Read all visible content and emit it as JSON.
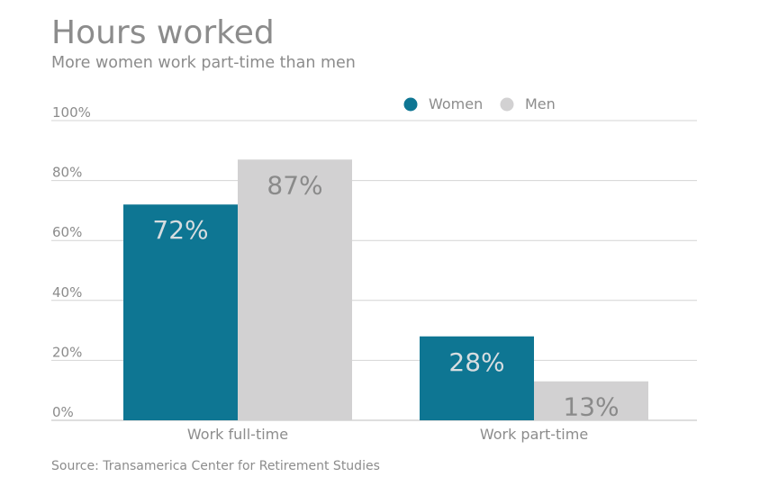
{
  "chart_data": {
    "type": "bar",
    "title": "Hours worked",
    "subtitle": "More women work part-time than men",
    "source": "Source: Transamerica Center for Retirement Studies",
    "categories": [
      "Work full-time",
      "Work part-time"
    ],
    "series": [
      {
        "name": "Women",
        "values": [
          72,
          28
        ],
        "labels": [
          "72%",
          "28%"
        ],
        "color": "#0e7693",
        "label_color": "#d7dde0"
      },
      {
        "name": "Men",
        "values": [
          87,
          13
        ],
        "labels": [
          "87%",
          "13%"
        ],
        "color": "#d2d1d2",
        "label_color": "#8a8a8a"
      }
    ],
    "ylim": [
      0,
      100
    ],
    "yticks": [
      {
        "value": 0,
        "label": "0%"
      },
      {
        "value": 20,
        "label": "20%"
      },
      {
        "value": 40,
        "label": "40%"
      },
      {
        "value": 60,
        "label": "60%"
      },
      {
        "value": 80,
        "label": "80%"
      },
      {
        "value": 100,
        "label": "100%"
      }
    ],
    "legend_position": "top-right",
    "grid": true
  }
}
